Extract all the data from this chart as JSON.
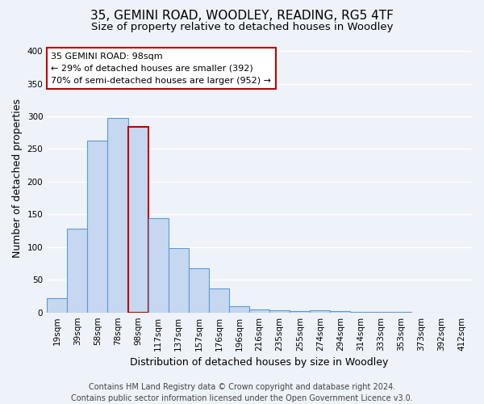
{
  "title": "35, GEMINI ROAD, WOODLEY, READING, RG5 4TF",
  "subtitle": "Size of property relative to detached houses in Woodley",
  "xlabel": "Distribution of detached houses by size in Woodley",
  "ylabel": "Number of detached properties",
  "bin_labels": [
    "19sqm",
    "39sqm",
    "58sqm",
    "78sqm",
    "98sqm",
    "117sqm",
    "137sqm",
    "157sqm",
    "176sqm",
    "196sqm",
    "216sqm",
    "235sqm",
    "255sqm",
    "274sqm",
    "294sqm",
    "314sqm",
    "333sqm",
    "353sqm",
    "373sqm",
    "392sqm",
    "412sqm"
  ],
  "bar_values": [
    22,
    128,
    263,
    298,
    284,
    144,
    98,
    68,
    37,
    9,
    5,
    3,
    2,
    3,
    2,
    1,
    1,
    1,
    0,
    0,
    0
  ],
  "bar_color": "#c5d8f0",
  "bar_edge_color": "#5b9bd5",
  "highlight_bar_index": 4,
  "highlight_bar_edge_color": "#c00000",
  "annotation_box_text": "35 GEMINI ROAD: 98sqm\n← 29% of detached houses are smaller (392)\n70% of semi-detached houses are larger (952) →",
  "annotation_box_edge_color": "#c00000",
  "annotation_box_facecolor": "white",
  "ylim": [
    0,
    410
  ],
  "yticks": [
    0,
    50,
    100,
    150,
    200,
    250,
    300,
    350,
    400
  ],
  "footer_text": "Contains HM Land Registry data © Crown copyright and database right 2024.\nContains public sector information licensed under the Open Government Licence v3.0.",
  "background_color": "#eef2f9",
  "grid_color": "white",
  "title_fontsize": 11,
  "subtitle_fontsize": 9.5,
  "axis_label_fontsize": 9,
  "tick_fontsize": 7.5,
  "footer_fontsize": 7
}
